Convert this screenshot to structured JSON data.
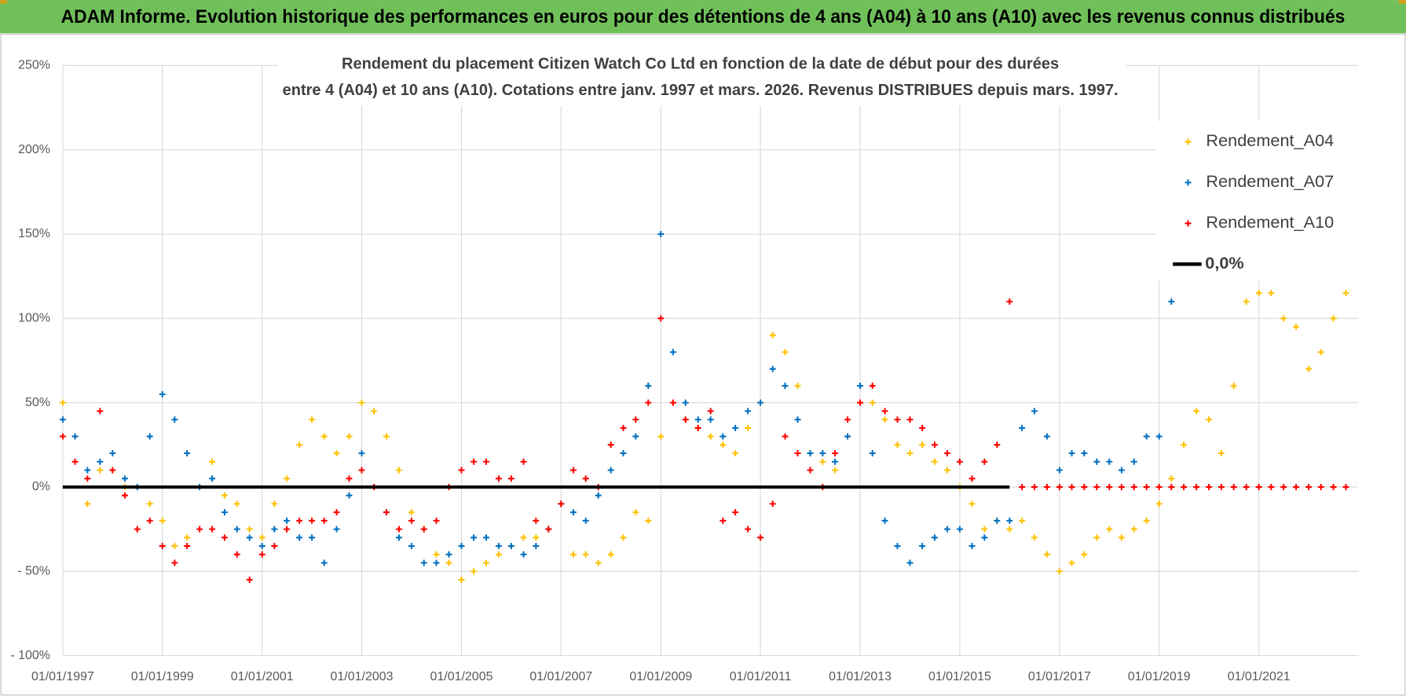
{
  "header": {
    "title": "ADAM Informe. Evolution historique des performances en euros pour des détentions de 4 ans (A04) à 10 ans (A10) avec les revenus connus distribués"
  },
  "chart_data": {
    "type": "scatter",
    "title": [
      "Rendement du placement Citizen Watch Co Ltd en fonction de la date de début pour des durées",
      "entre 4 (A04) et 10 ans (A10).  Cotations entre janv. 1997 et mars. 2026. Revenus DISTRIBUES depuis mars. 1997."
    ],
    "x": [
      "01/01/1997",
      "01/04/1997",
      "01/07/1997",
      "01/10/1997",
      "01/01/1998",
      "01/04/1998",
      "01/07/1998",
      "01/10/1998",
      "01/01/1999",
      "01/04/1999",
      "01/07/1999",
      "01/10/1999",
      "01/01/2000",
      "01/04/2000",
      "01/07/2000",
      "01/10/2000",
      "01/01/2001",
      "01/04/2001",
      "01/07/2001",
      "01/10/2001",
      "01/01/2002",
      "01/04/2002",
      "01/07/2002",
      "01/10/2002",
      "01/01/2003",
      "01/04/2003",
      "01/07/2003",
      "01/10/2003",
      "01/01/2004",
      "01/04/2004",
      "01/07/2004",
      "01/10/2004",
      "01/01/2005",
      "01/04/2005",
      "01/07/2005",
      "01/10/2005",
      "01/01/2006",
      "01/04/2006",
      "01/07/2006",
      "01/10/2006",
      "01/01/2007",
      "01/04/2007",
      "01/07/2007",
      "01/10/2007",
      "01/01/2008",
      "01/04/2008",
      "01/07/2008",
      "01/10/2008",
      "01/01/2009",
      "01/04/2009",
      "01/07/2009",
      "01/10/2009",
      "01/01/2010",
      "01/04/2010",
      "01/07/2010",
      "01/10/2010",
      "01/01/2011",
      "01/04/2011",
      "01/07/2011",
      "01/10/2011",
      "01/01/2012",
      "01/04/2012",
      "01/07/2012",
      "01/10/2012",
      "01/01/2013",
      "01/04/2013",
      "01/07/2013",
      "01/10/2013",
      "01/01/2014",
      "01/04/2014",
      "01/07/2014",
      "01/10/2014",
      "01/01/2015",
      "01/04/2015",
      "01/07/2015",
      "01/10/2015",
      "01/01/2016",
      "01/04/2016",
      "01/07/2016",
      "01/10/2016",
      "01/01/2017",
      "01/04/2017",
      "01/07/2017",
      "01/10/2017",
      "01/01/2018",
      "01/04/2018",
      "01/07/2018",
      "01/10/2018",
      "01/01/2019",
      "01/04/2019",
      "01/07/2019",
      "01/10/2019",
      "01/01/2020",
      "01/04/2020",
      "01/07/2020",
      "01/10/2020",
      "01/01/2021",
      "01/04/2021",
      "01/07/2021",
      "01/10/2021",
      "01/01/2022",
      "01/04/2022",
      "01/07/2022",
      "01/10/2022"
    ],
    "series": [
      {
        "name": "Rendement_A04",
        "color": "#ffc000",
        "marker": "+",
        "values": [
          50,
          30,
          -10,
          10,
          10,
          0,
          0,
          -10,
          -20,
          -35,
          -30,
          0,
          15,
          -5,
          -10,
          -25,
          -30,
          -10,
          5,
          25,
          40,
          30,
          20,
          30,
          50,
          45,
          30,
          10,
          -15,
          -25,
          -40,
          -45,
          -55,
          -50,
          -45,
          -40,
          -35,
          -30,
          -30,
          -25,
          -10,
          -40,
          -40,
          -45,
          -40,
          -30,
          -15,
          -20,
          30,
          50,
          40,
          35,
          30,
          25,
          20,
          35,
          50,
          90,
          80,
          60,
          20,
          15,
          10,
          30,
          50,
          50,
          40,
          25,
          20,
          25,
          15,
          10,
          0,
          -10,
          -25,
          -20,
          -25,
          -20,
          -30,
          -40,
          -50,
          -45,
          -40,
          -30,
          -25,
          -30,
          -25,
          -20,
          -10,
          5,
          25,
          45,
          40,
          20,
          60,
          110,
          115,
          115,
          100,
          95,
          70,
          80,
          100,
          115
        ]
      },
      {
        "name": "Rendement_A07",
        "color": "#0070c0",
        "marker": "+",
        "values": [
          40,
          30,
          10,
          15,
          20,
          5,
          0,
          30,
          55,
          40,
          20,
          0,
          5,
          -15,
          -25,
          -30,
          -35,
          -25,
          -20,
          -30,
          -30,
          -45,
          -25,
          -5,
          20,
          0,
          -15,
          -30,
          -35,
          -45,
          -45,
          -40,
          -35,
          -30,
          -30,
          -35,
          -35,
          -40,
          -35,
          -25,
          -10,
          -15,
          -20,
          -5,
          10,
          20,
          30,
          60,
          150,
          80,
          50,
          40,
          40,
          30,
          35,
          45,
          50,
          70,
          60,
          40,
          20,
          20,
          15,
          30,
          60,
          20,
          -20,
          -35,
          -45,
          -35,
          -30,
          -25,
          -25,
          -35,
          -30,
          -20,
          -20,
          35,
          45,
          30,
          10,
          20,
          20,
          15,
          15,
          10,
          15,
          30,
          30,
          110,
          null,
          null,
          null,
          null,
          null,
          null,
          null,
          null,
          null,
          null,
          null,
          null,
          null,
          null
        ]
      },
      {
        "name": "Rendement_A10",
        "color": "#ff0000",
        "marker": "+",
        "values": [
          30,
          15,
          5,
          45,
          10,
          -5,
          -25,
          -20,
          -35,
          -45,
          -35,
          -25,
          -25,
          -30,
          -40,
          -55,
          -40,
          -35,
          -25,
          -20,
          -20,
          -20,
          -15,
          5,
          10,
          0,
          -15,
          -25,
          -20,
          -25,
          -20,
          0,
          10,
          15,
          15,
          5,
          5,
          15,
          -20,
          -25,
          -10,
          10,
          5,
          0,
          25,
          35,
          40,
          50,
          100,
          50,
          40,
          35,
          45,
          -20,
          -15,
          -25,
          -30,
          -10,
          30,
          20,
          10,
          0,
          20,
          40,
          50,
          60,
          45,
          40,
          40,
          35,
          25,
          20,
          15,
          5,
          15,
          25,
          110,
          0,
          0,
          0,
          0,
          0,
          0,
          0,
          0,
          0,
          0,
          0,
          0,
          0,
          0,
          0,
          0,
          0,
          0,
          0,
          0,
          0,
          0,
          0,
          0,
          0,
          0,
          0
        ]
      },
      {
        "name": "0,0%",
        "color": "#000000",
        "marker": "line",
        "values": [
          0,
          0,
          0,
          0,
          0,
          0,
          0,
          0,
          0,
          0,
          0,
          0,
          0,
          0,
          0,
          0,
          0,
          0,
          0,
          0,
          0,
          0,
          0,
          0,
          0,
          0,
          0,
          0,
          0,
          0,
          0,
          0,
          0,
          0,
          0,
          0,
          0,
          0,
          0,
          0,
          0,
          0,
          0,
          0,
          0,
          0,
          0,
          0,
          0,
          0,
          0,
          0,
          0,
          0,
          0,
          0,
          0,
          0,
          0,
          0,
          0,
          0,
          0,
          0,
          0,
          0,
          0,
          0,
          0,
          0,
          0,
          0,
          0,
          0,
          0,
          0,
          0,
          null,
          null,
          null,
          null,
          null,
          null,
          null,
          null,
          null,
          null,
          null,
          null,
          null,
          null,
          null,
          null,
          null,
          null,
          null,
          null,
          null,
          null,
          null,
          null,
          null,
          null,
          null
        ]
      }
    ],
    "xlim": [
      "01/01/1997",
      "01/01/2023"
    ],
    "xticks": [
      "01/01/1997",
      "01/01/1999",
      "01/01/2001",
      "01/01/2003",
      "01/01/2005",
      "01/01/2007",
      "01/01/2009",
      "01/01/2011",
      "01/01/2013",
      "01/01/2015",
      "01/01/2017",
      "01/01/2019",
      "01/01/2021"
    ],
    "ylim": [
      -100,
      250
    ],
    "yticks": [
      {
        "value": -100,
        "label": "- 100%"
      },
      {
        "value": -50,
        "label": "- 50%"
      },
      {
        "value": 0,
        "label": "0%"
      },
      {
        "value": 50,
        "label": "50%"
      },
      {
        "value": 100,
        "label": "100%"
      },
      {
        "value": 150,
        "label": "150%"
      },
      {
        "value": 200,
        "label": "200%"
      },
      {
        "value": 250,
        "label": "250%"
      }
    ],
    "grid": true,
    "legend": "upper right"
  }
}
